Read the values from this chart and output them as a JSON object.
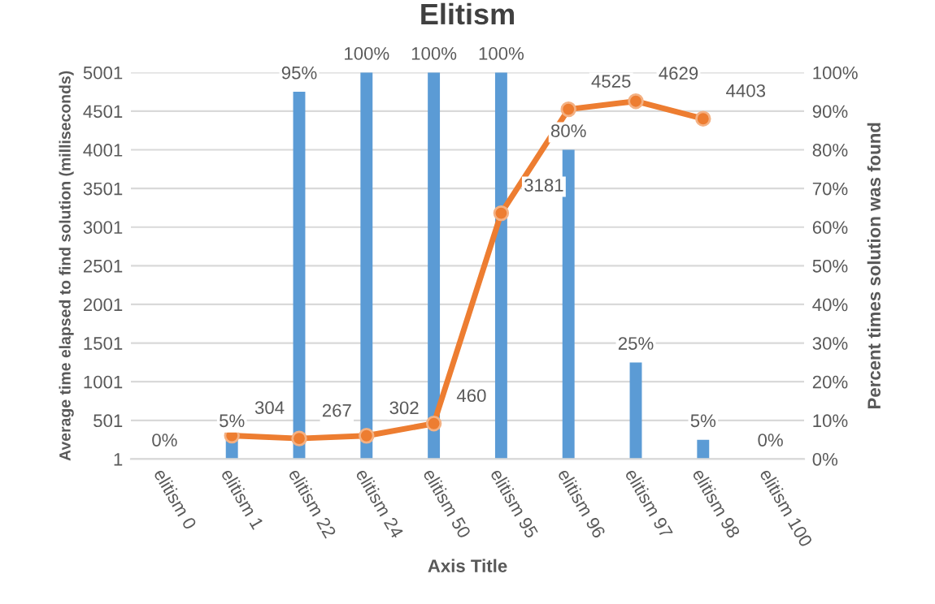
{
  "chart_data": {
    "type": "bar",
    "title": "Elitism",
    "xlabel": "Axis Title",
    "ylabel": "Average time elapsed to find solution (milliseconds)",
    "y2label": "Percent times solution was found",
    "categories": [
      "elitism 0",
      "elitism 1",
      "elitism 22",
      "elitism 24",
      "elitism 50",
      "elitism 95",
      "elitism 96",
      "elitism 97",
      "elitism 98",
      "elitism 100"
    ],
    "series": [
      {
        "axis": "y2",
        "color": "#5b9bd5",
        "values": [
          0,
          5,
          95,
          100,
          100,
          100,
          80,
          25,
          5,
          0
        ],
        "value_labels": [
          "0%",
          "5%",
          "95%",
          "100%",
          "100%",
          "100%",
          "80%",
          "25%",
          "5%",
          "0%"
        ]
      },
      {
        "type": "line",
        "axis": "y",
        "color": "#ed7d31",
        "marker": "circle",
        "values": [
          null,
          304,
          267,
          302,
          460,
          3181,
          4525,
          4629,
          4403,
          null
        ],
        "value_labels": [
          null,
          "304",
          "267",
          "302",
          "460",
          "3181",
          "4525",
          "4629",
          "4403",
          null
        ]
      }
    ],
    "ylim": [
      1,
      5001
    ],
    "yticks": [
      1,
      501,
      1001,
      1501,
      2001,
      2501,
      3001,
      3501,
      4001,
      4501,
      5001
    ],
    "y2lim": [
      0,
      100
    ],
    "y2ticks": [
      {
        "value": 0,
        "label": "0%"
      },
      {
        "value": 10,
        "label": "10%"
      },
      {
        "value": 20,
        "label": "20%"
      },
      {
        "value": 30,
        "label": "30%"
      },
      {
        "value": 40,
        "label": "40%"
      },
      {
        "value": 50,
        "label": "50%"
      },
      {
        "value": 60,
        "label": "60%"
      },
      {
        "value": 70,
        "label": "70%"
      },
      {
        "value": 80,
        "label": "80%"
      },
      {
        "value": 90,
        "label": "90%"
      },
      {
        "value": 100,
        "label": "100%"
      }
    ],
    "grid": "y",
    "legend": false
  }
}
